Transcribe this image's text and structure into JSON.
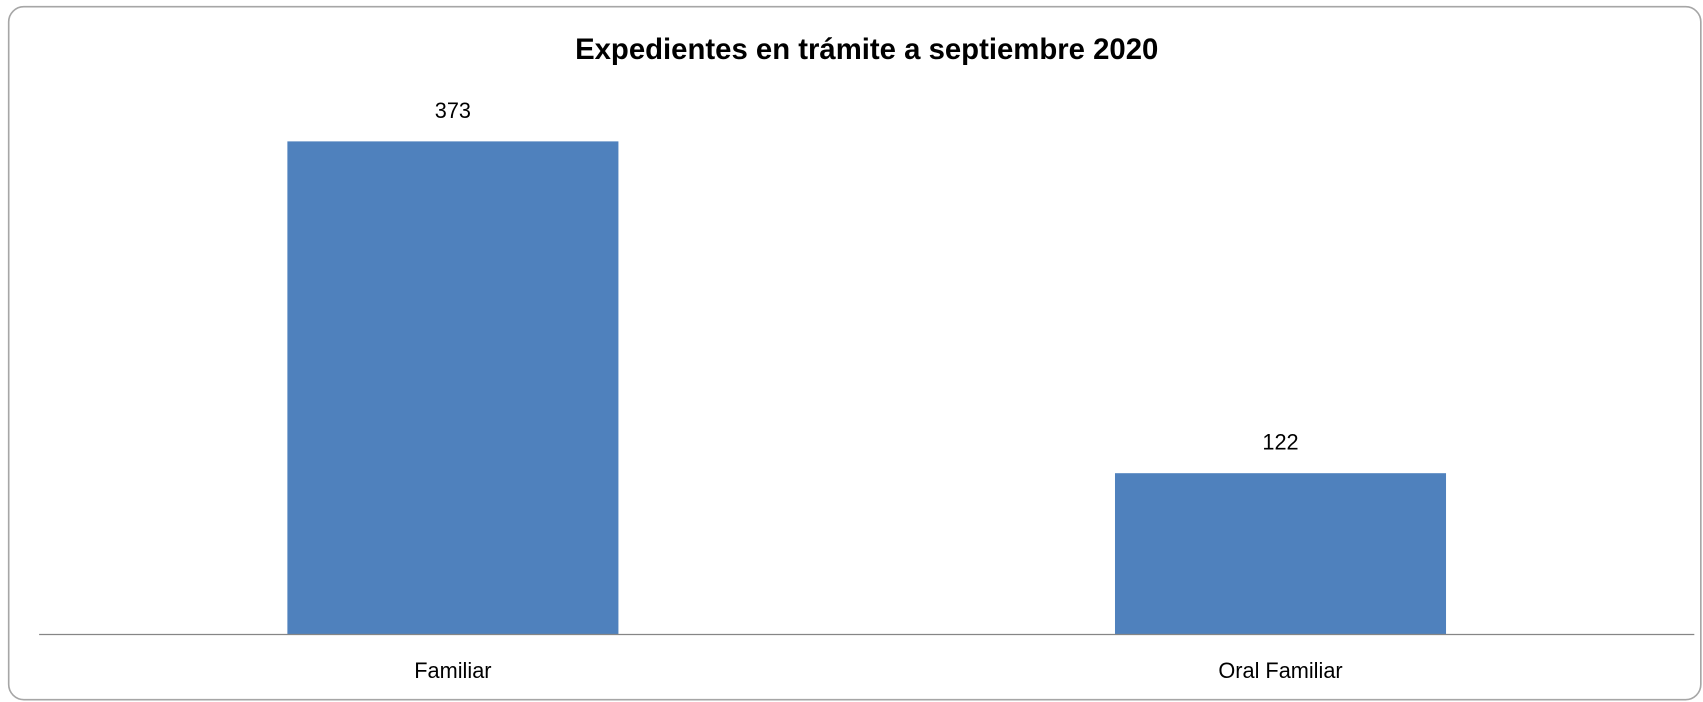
{
  "chart_data": {
    "type": "bar",
    "title": "Expedientes en trámite a septiembre 2020",
    "categories": [
      "Familiar",
      "Oral Familiar"
    ],
    "values": [
      373,
      122
    ],
    "color": "#4f81bd",
    "data_labels": true
  }
}
